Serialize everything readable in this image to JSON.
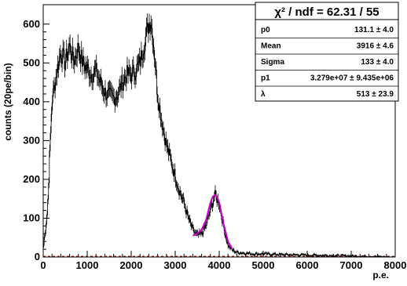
{
  "chart_data": {
    "type": "line",
    "xlabel": "p.e.",
    "ylabel": "counts (20pe/bin)",
    "xlim": [
      0,
      8000
    ],
    "ylim": [
      0,
      650
    ],
    "x_ticks": [
      0,
      1000,
      2000,
      3000,
      4000,
      5000,
      6000,
      7000,
      8000
    ],
    "y_ticks": [
      0,
      100,
      200,
      300,
      400,
      500,
      600
    ],
    "colors": {
      "histogram": "#000000",
      "fit": "#cc00cc",
      "background_line": "#cc0000",
      "frame": "#000000"
    },
    "series": [
      {
        "x": [
          0,
          100,
          200,
          300,
          400,
          500,
          600,
          700,
          800,
          900,
          1000,
          1100,
          1200,
          1300,
          1400,
          1500,
          1600,
          1700,
          1800,
          1900,
          2000,
          2100,
          2200,
          2300,
          2400,
          2450,
          2500,
          2550,
          2600,
          2700,
          2800,
          2900,
          3000,
          3100,
          3200,
          3300,
          3400,
          3500,
          3600,
          3700,
          3800,
          3900,
          4000,
          4100,
          4200,
          4300,
          4400,
          4600,
          4800,
          5000,
          5500,
          6000,
          6500,
          7000,
          7500,
          8000
        ],
        "y": [
          20,
          120,
          400,
          470,
          530,
          500,
          545,
          505,
          540,
          500,
          485,
          470,
          480,
          450,
          425,
          415,
          410,
          420,
          450,
          470,
          470,
          480,
          500,
          550,
          600,
          610,
          560,
          500,
          420,
          350,
          290,
          250,
          210,
          170,
          140,
          100,
          70,
          55,
          60,
          80,
          120,
          160,
          140,
          80,
          30,
          18,
          12,
          10,
          8,
          8,
          6,
          5,
          4,
          3,
          2,
          0
        ]
      },
      {
        "name": "",
        "x": [
          3400,
          3500,
          3600,
          3700,
          3800,
          3850,
          3900,
          3950,
          4000,
          4100,
          4200,
          4300
        ],
        "y": [
          55,
          60,
          70,
          95,
          140,
          155,
          160,
          155,
          140,
          85,
          40,
          20
        ]
      }
    ],
    "stats_box": {
      "title": "χ² / ndf = 62.31 / 55",
      "rows": [
        {
          "name": "p0",
          "value": "131.1 ± 4.0"
        },
        {
          "name": "Mean",
          "value": "3916 ± 4.6"
        },
        {
          "name": "Sigma",
          "value": "133 ± 4.0"
        },
        {
          "name": "p1",
          "value": "3.279e+07 ± 9.435e+06"
        },
        {
          "name": "λ",
          "value": "513 ± 23.9"
        }
      ]
    }
  }
}
